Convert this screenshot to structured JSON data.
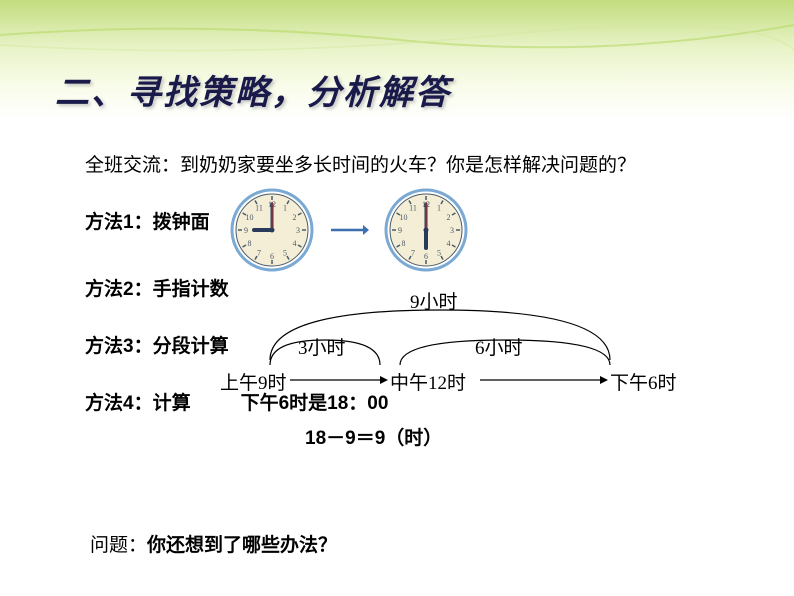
{
  "background": {
    "gradient_top": "#c3dd7e",
    "gradient_mid": "#e8f3c8",
    "gradient_end": "#ffffff",
    "curve_stroke": "#b8d868"
  },
  "title": "二、寻找策略，分析解答",
  "title_color": "#1a1a4a",
  "title_fontsize": 34,
  "discuss": "全班交流：到奶奶家要坐多长时间的火车？你是怎样解决问题的？",
  "methods": {
    "m1": "方法1：拨钟面",
    "m2": "方法2：手指计数",
    "m3": "方法3：分段计算",
    "m4": "方法4：计算",
    "m4_text1": "下午6时是18：00",
    "m4_text2": "18－9＝9（时）"
  },
  "clocks": {
    "clock1": {
      "hour": 9,
      "minute": 0
    },
    "clock2": {
      "hour": 6,
      "minute": 0
    },
    "face_color": "#f5eed6",
    "ring_color": "#7aa9d4",
    "mark_color": "#4a5a6a",
    "hand_color": "#2a3a5a",
    "second_color": "#c03030",
    "radius": 40
  },
  "arrow_color": "#3a6fb0",
  "diagram": {
    "total_label": "9小时",
    "seg1_label": "3小时",
    "seg2_label": "6小时",
    "point1": "上午9时",
    "point2": "中午12时",
    "point3": "下午6时",
    "line_color": "#000000",
    "curve_color": "#000000"
  },
  "question_prefix": "问题：",
  "question_text": "你还想到了哪些办法？",
  "text_color": "#000000",
  "body_fontsize": 19
}
